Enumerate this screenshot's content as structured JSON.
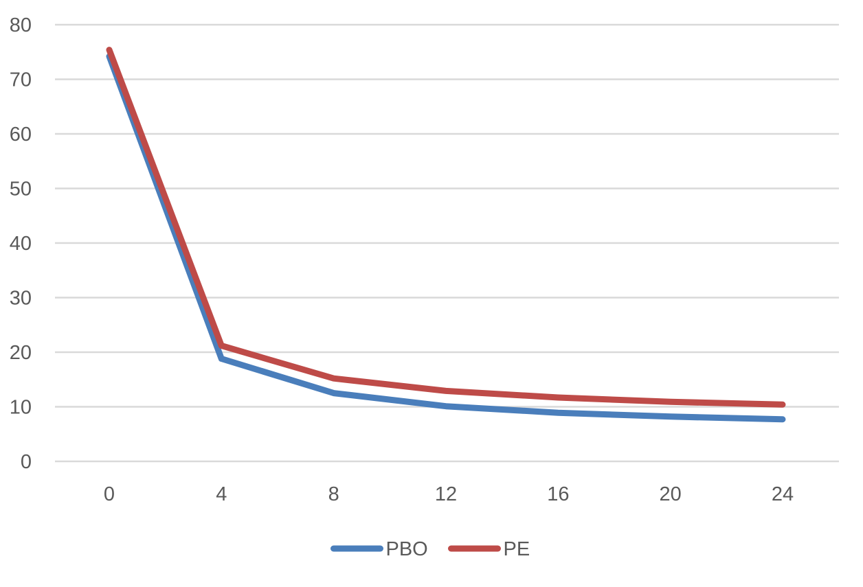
{
  "chart_data": {
    "type": "line",
    "title": "",
    "xlabel": "",
    "ylabel": "",
    "categories": [
      "0",
      "4",
      "8",
      "12",
      "16",
      "20",
      "24"
    ],
    "x": [
      0,
      4,
      8,
      12,
      16,
      20,
      24
    ],
    "ylim": [
      0,
      80
    ],
    "yticks": [
      0,
      10,
      20,
      30,
      40,
      50,
      60,
      70,
      80
    ],
    "grid": "horizontal",
    "legend": "bottom",
    "series": [
      {
        "name": "PBO",
        "color": "#4a7ebb",
        "values": [
          74.2,
          18.8,
          12.5,
          10.1,
          8.9,
          8.2,
          7.7
        ]
      },
      {
        "name": "PE",
        "color": "#be4b48",
        "values": [
          75.4,
          21.2,
          15.2,
          12.9,
          11.7,
          10.9,
          10.4
        ]
      }
    ]
  },
  "colors": {
    "grid": "#d9d9d9",
    "text": "#595959"
  }
}
